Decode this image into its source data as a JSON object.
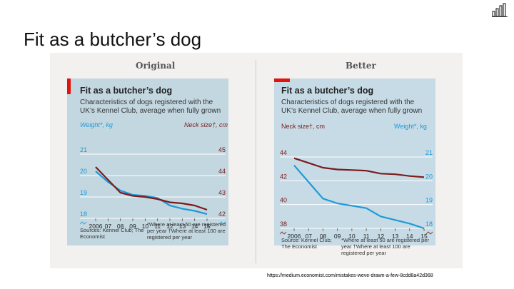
{
  "slide": {
    "title": "Fit as a butcher’s dog",
    "source_url": "https://medium.economist.com/mistakes-weve-drawn-a-few-8cdd8a42d368"
  },
  "logo": {
    "icon": "bar-chart-logo-icon"
  },
  "figure": {
    "original_heading": "Original",
    "better_heading": "Better"
  },
  "original": {
    "title": "Fit as a butcher’s dog",
    "subtitle": "Characteristics of dogs registered with the UK’s Kennel Club, average when fully grown",
    "left_axis_label": "Weight*, kg",
    "right_axis_label": "Neck size†, cm",
    "footnote_left": "Sources: Kennel Club; The Economist",
    "footnote_right": "*Where at least 50 are registered per year †Where at least 100 are registered per year"
  },
  "better": {
    "title": "Fit as a butcher’s dog",
    "subtitle": "Characteristics of dogs registered with the UK’s Kennel Club, average when fully grown",
    "left_axis_label": "Neck size†, cm",
    "right_axis_label": "Weight*, kg",
    "footnote_left": "Source: Kennel Club; The Economist",
    "footnote_right": "*Where at least 50 are registered per year †Where at least 100 are registered per year"
  },
  "chart_data": [
    {
      "type": "line",
      "title": "Fit as a butcher’s dog",
      "variant": "Original",
      "categories": [
        "2006",
        "07",
        "08",
        "09",
        "10",
        "11",
        "12",
        "13",
        "14",
        "15"
      ],
      "ylim_left": [
        18,
        21
      ],
      "ylim_right": [
        42,
        45
      ],
      "yticks_left": [
        "21",
        "20",
        "19",
        "18"
      ],
      "yticks_right": [
        "45",
        "44",
        "43",
        "42"
      ],
      "series": [
        {
          "name": "Weight*, kg",
          "axis": "left",
          "color": "#1e9ad6",
          "values": [
            20.2,
            19.7,
            19.3,
            19.1,
            19.05,
            18.95,
            18.6,
            18.45,
            18.35,
            18.2
          ]
        },
        {
          "name": "Neck size†, cm",
          "axis": "right",
          "color": "#7b1b1b",
          "values": [
            44.4,
            43.8,
            43.2,
            43.05,
            43.0,
            42.9,
            42.75,
            42.7,
            42.6,
            42.4
          ]
        }
      ]
    },
    {
      "type": "line",
      "title": "Fit as a butcher’s dog",
      "variant": "Better",
      "categories": [
        "2006",
        "07",
        "08",
        "09",
        "10",
        "11",
        "12",
        "13",
        "14",
        "15"
      ],
      "ylim_left": [
        38,
        44
      ],
      "ylim_right": [
        18,
        21
      ],
      "yticks_left": [
        "44",
        "42",
        "40",
        "38"
      ],
      "yticks_right": [
        "21",
        "20",
        "19",
        "18"
      ],
      "series": [
        {
          "name": "Neck size†, cm",
          "axis": "left",
          "color": "#7b1b1b",
          "values": [
            43.9,
            43.5,
            43.1,
            42.95,
            42.9,
            42.85,
            42.6,
            42.55,
            42.4,
            42.3
          ]
        },
        {
          "name": "Weight*, kg",
          "axis": "right",
          "color": "#1e9ad6",
          "values": [
            20.65,
            19.95,
            19.25,
            19.05,
            18.95,
            18.85,
            18.5,
            18.35,
            18.2,
            18.0
          ]
        }
      ]
    }
  ]
}
